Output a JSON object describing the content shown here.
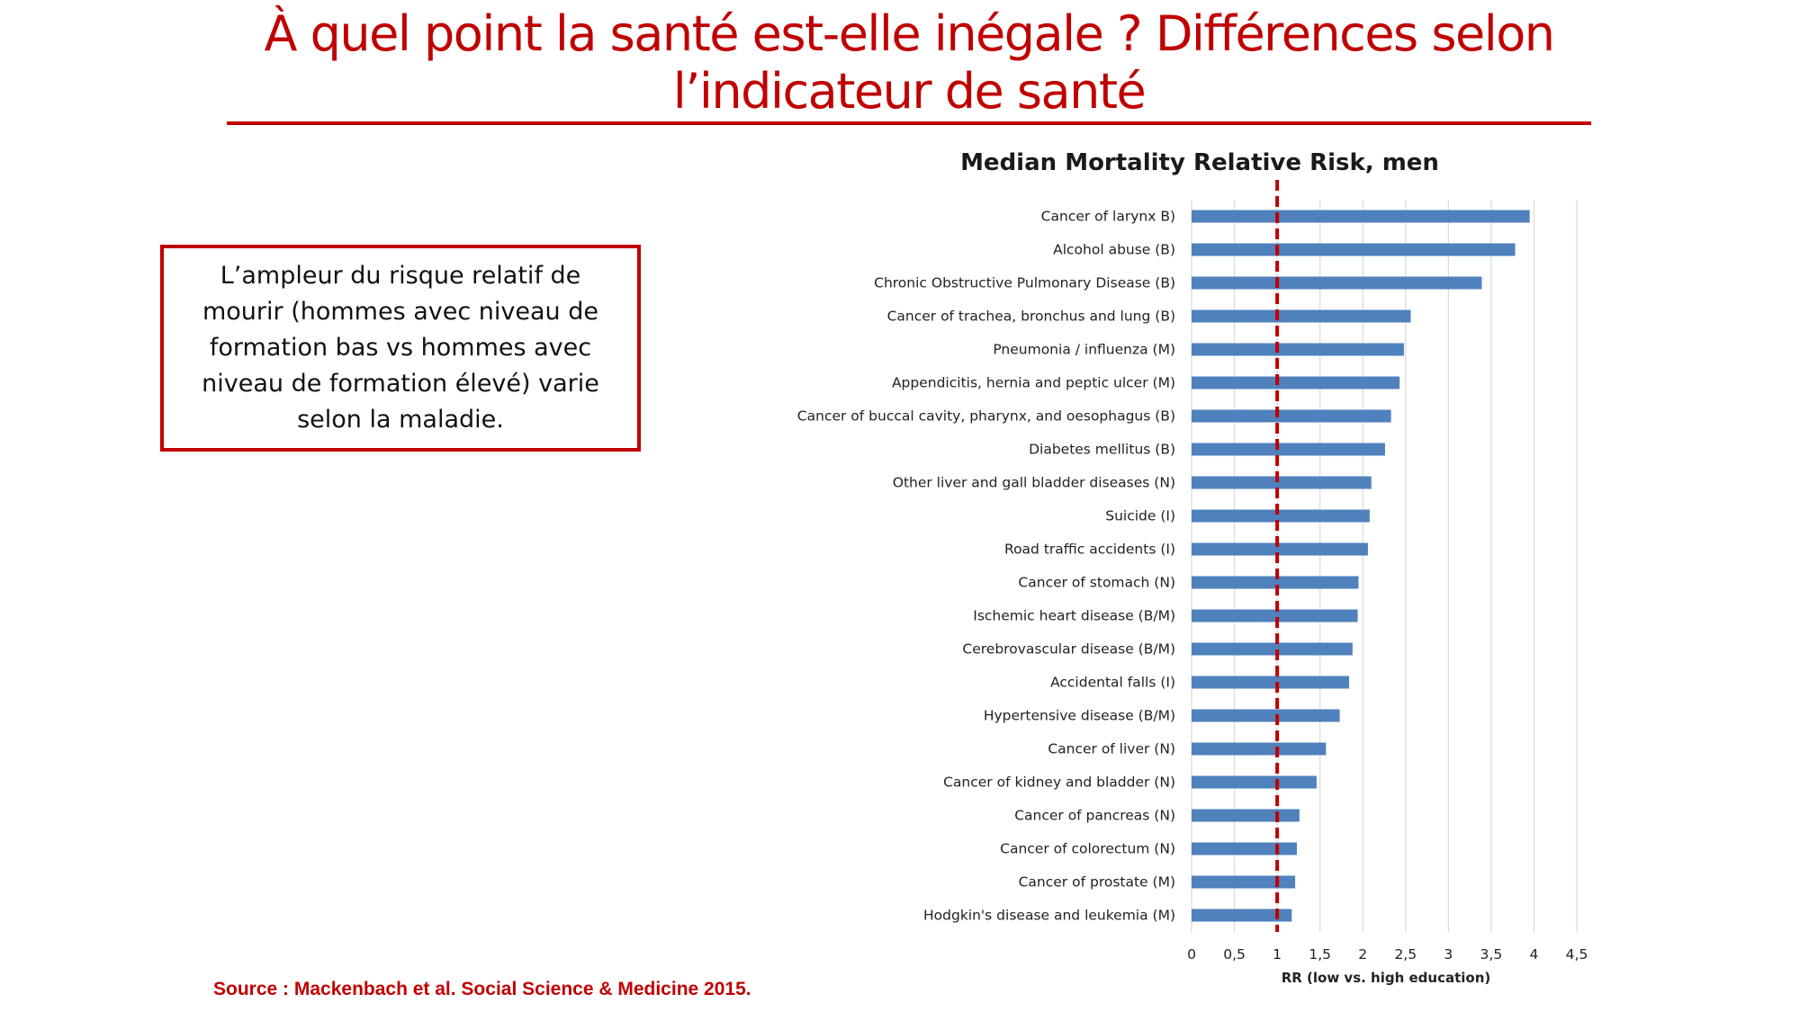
{
  "slide": {
    "title_line1": "À quel point la santé est-elle inégale ? Différences selon",
    "title_line2": "l’indicateur de santé",
    "callout": "L’ampleur du risque relatif de mourir (hommes avec niveau de formation bas vs hommes avec niveau de formation élevé) varie selon la maladie.",
    "source": "Source : Mackenbach et al. Social Science & Medicine 2015."
  },
  "colors": {
    "accent": "#c00000",
    "bar": "#4f81bd",
    "grid": "#d9d9d9",
    "reference_line": "#c00000"
  },
  "chart_data": {
    "type": "bar",
    "orientation": "horizontal",
    "title": "Median Mortality Relative Risk, men",
    "xlabel": "RR (low vs. high education)",
    "ylabel": "",
    "xlim": [
      0,
      4.5
    ],
    "grid": true,
    "ticks": [
      0,
      0.5,
      1,
      1.5,
      2,
      2.5,
      3,
      3.5,
      4,
      4.5
    ],
    "tick_labels": [
      "0",
      "0,5",
      "1",
      "1,5",
      "2",
      "2,5",
      "3",
      "3,5",
      "4",
      "4,5"
    ],
    "reference_line": 1,
    "categories": [
      "Cancer of larynx B)",
      "Alcohol abuse (B)",
      "Chronic Obstructive Pulmonary Disease (B)",
      "Cancer of trachea, bronchus and lung (B)",
      "Pneumonia / influenza (M)",
      "Appendicitis, hernia and peptic ulcer (M)",
      "Cancer of buccal cavity, pharynx, and oesophagus (B)",
      "Diabetes mellitus (B)",
      "Other liver and gall bladder diseases (N)",
      "Suicide (I)",
      "Road traffic accidents (I)",
      "Cancer of stomach (N)",
      "Ischemic heart disease (B/M)",
      "Cerebrovascular disease (B/M)",
      "Accidental falls (I)",
      "Hypertensive disease (B/M)",
      "Cancer of liver (N)",
      "Cancer of kidney and bladder (N)",
      "Cancer of pancreas (N)",
      "Cancer of colorectum (N)",
      "Cancer of prostate (M)",
      "Hodgkin's disease and leukemia (M)"
    ],
    "values": [
      3.95,
      3.78,
      3.39,
      2.56,
      2.48,
      2.43,
      2.33,
      2.26,
      2.1,
      2.08,
      2.06,
      1.95,
      1.94,
      1.88,
      1.84,
      1.73,
      1.57,
      1.46,
      1.26,
      1.23,
      1.21,
      1.17
    ]
  }
}
